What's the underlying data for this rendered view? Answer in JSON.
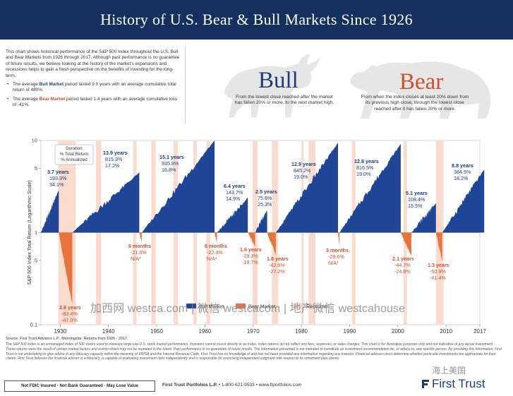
{
  "header": {
    "title": "History of U.S. Bear & Bull Markets Since 1926"
  },
  "intro": {
    "paragraph": "This chart shows historical performance of the S&P 500 Index throughout the U.S. Bull and Bear Markets from 1926 through 2017. Although past performance is no guarantee of future results, we believe looking at the history of the market's expansions and recessions helps to gain a fresh perspective on the benefits of investing for the long-term.",
    "bullet1_pre": "The average ",
    "bullet1_em": "Bull Market",
    "bullet1_post": " period lasted 9.0 years with an average cumulative total return of 480%.",
    "bullet2_pre": "The average ",
    "bullet2_em": "Bear Market",
    "bullet2_post": " period lasted 1.4 years with an average cumulative loss of -41%."
  },
  "bull": {
    "word": "Bull",
    "desc": "From the lowest close reached after the market has fallen 20% or more, to the next market high."
  },
  "bear": {
    "word": "Bear",
    "desc": "From when the index closes at least 20% down from its previous high close, through the lowest close reached after it has fallen 20% or more."
  },
  "colors": {
    "bull": "#1f4597",
    "bear": "#e8743b",
    "bear_band": "#f9dccd",
    "navy": "#15305e"
  },
  "chart_data": {
    "type": "area",
    "ylabel": "S&P 500 Index Total Return (Logarithmic Scale)",
    "yscale": "log",
    "ylim": [
      0.1,
      10
    ],
    "yticks": [
      {
        "v": 10,
        "label": "10"
      },
      {
        "v": 5,
        "label": "5"
      },
      {
        "v": 1,
        "label": "1"
      },
      {
        "v": 0.5,
        "label": ".5"
      },
      {
        "v": 0.1,
        "label": "0.1"
      }
    ],
    "xlim": [
      1926,
      2017
    ],
    "xticks": [
      "1930",
      "1940",
      "1950",
      "1960",
      "1970",
      "1980",
      "1990",
      "2000",
      "2010",
      "2017"
    ],
    "legend_box": {
      "line1": "Duration",
      "line2": "% Total Return",
      "line3": "% Annualized"
    },
    "legend": [
      "Bull Market",
      "Bear Market",
      "Recession"
    ],
    "bull_markets": [
      {
        "start": 1926.0,
        "end": 1929.7,
        "duration": "3.7 years",
        "total": "193.3%",
        "annual": "34.1%",
        "peak": 2.9
      },
      {
        "start": 1932.5,
        "end": 1946.4,
        "duration": "13.9 years",
        "total": "815.3%",
        "annual": "17.2%",
        "peak": 4.5
      },
      {
        "start": 1946.9,
        "end": 1962.0,
        "duration": "15.1 years",
        "total": "935.8%",
        "annual": "16.8%",
        "peak": 10
      },
      {
        "start": 1962.5,
        "end": 1968.9,
        "duration": "6.4 years",
        "total": "143.7%",
        "annual": "14.9%",
        "peak": 2.4
      },
      {
        "start": 1970.4,
        "end": 1972.9,
        "duration": "2.5 years",
        "total": "75.6%",
        "annual": "25.3%",
        "peak": 1.75
      },
      {
        "start": 1974.7,
        "end": 1987.6,
        "duration": "12.9 years",
        "total": "845.2%",
        "annual": "19.0%",
        "peak": 9.45
      },
      {
        "start": 1987.9,
        "end": 2000.6,
        "duration": "12.8 years",
        "total": "816.5%",
        "annual": "19.0%",
        "peak": 9.17
      },
      {
        "start": 2002.8,
        "end": 2007.9,
        "duration": "5.1 years",
        "total": "108.4%",
        "annual": "15.5%",
        "peak": 2.08
      },
      {
        "start": 2009.2,
        "end": 2017.9,
        "duration": "8.8 years",
        "total": "384.5%",
        "annual": "18.2%",
        "peak": 4.85
      }
    ],
    "bear_markets": [
      {
        "start": 1929.7,
        "end": 1932.5,
        "duration": "2.8 years",
        "total": "-83.4%",
        "annual": "-47.0%",
        "trough": 0.166
      },
      {
        "start": 1946.4,
        "end": 1946.9,
        "duration": "6 months",
        "total": "-21.8%",
        "annual": "N/A*",
        "trough": 0.782
      },
      {
        "start": 1962.0,
        "end": 1962.5,
        "duration": "6 months",
        "total": "-22.3%",
        "annual": "N/A*",
        "trough": 0.777
      },
      {
        "start": 1968.9,
        "end": 1970.4,
        "duration": "1.6 years",
        "total": "-29.3%",
        "annual": "-19.7%",
        "trough": 0.707
      },
      {
        "start": 1972.9,
        "end": 1974.7,
        "duration": "1.8 years",
        "total": "-42.6%",
        "annual": "-27.2%",
        "trough": 0.574
      },
      {
        "start": 1987.6,
        "end": 1987.9,
        "duration": "3 months",
        "total": "-29.6%",
        "annual": "N/A*",
        "trough": 0.704
      },
      {
        "start": 2000.6,
        "end": 2002.8,
        "duration": "2.1 years",
        "total": "-44.7%",
        "annual": "-24.8%",
        "trough": 0.553
      },
      {
        "start": 2007.9,
        "end": 2009.2,
        "duration": "1.3 years",
        "total": "-50.9%",
        "annual": "-41.4%",
        "trough": 0.491
      }
    ],
    "recessions": [
      [
        1929.6,
        1933.2
      ],
      [
        1937.4,
        1938.5
      ],
      [
        1945.1,
        1945.8
      ],
      [
        1948.9,
        1949.8
      ],
      [
        1953.5,
        1954.4
      ],
      [
        1957.6,
        1958.3
      ],
      [
        1960.3,
        1961.1
      ],
      [
        1969.9,
        1970.9
      ],
      [
        1973.9,
        1975.2
      ],
      [
        1980.0,
        1980.5
      ],
      [
        1981.5,
        1982.9
      ],
      [
        1990.5,
        1991.2
      ],
      [
        2001.2,
        2001.9
      ],
      [
        2007.9,
        2009.5
      ]
    ]
  },
  "watermark": "加西网 westca.com | 微信 westcacom | 地产微信 westcahouse",
  "watermark_corner": "海上美国",
  "footer": {
    "source": "Source: First Trust Advisors L.P., Morningstar. Returns from 1926 - 2017.",
    "fine": "The S&P 500 Index is an unmanaged index of 500 stocks used to measure large-cap U.S. stock market performance. Investors cannot invest directly in an index. Index returns do not reflect any fees, expenses, or sales charges. This chart is for illustrative purposes only and not indicative of any actual investment. These returns were the result of certain market factors and events which may not be repeated in the future. Past performance is no guarantee of future results. The information presented is not intended to constitute an investment recommendation for, or advice to, any specific person. By providing this information, First Trust is not undertaking to give advice in any fiduciary capacity within the meaning of ERISA and the Internal Revenue Code. First Trust has no knowledge of and has not been provided any information regarding any investor. Financial advisors must determine whether particular investments are appropriate for their clients. First Trust believes the financial advisor is a fiduciary, is capable of evaluating investment risks independently and is responsible for exercising independent judgment with respect to its retirement plan clients.",
    "badge": "Not FDIC Insured · Not Bank Guaranteed · May Lose Value",
    "company": "First Trust Portfolios L.P.",
    "contact_rest": " • 1-800-621-9533 • www.ftportfolios.com",
    "logo": "First Trust"
  }
}
